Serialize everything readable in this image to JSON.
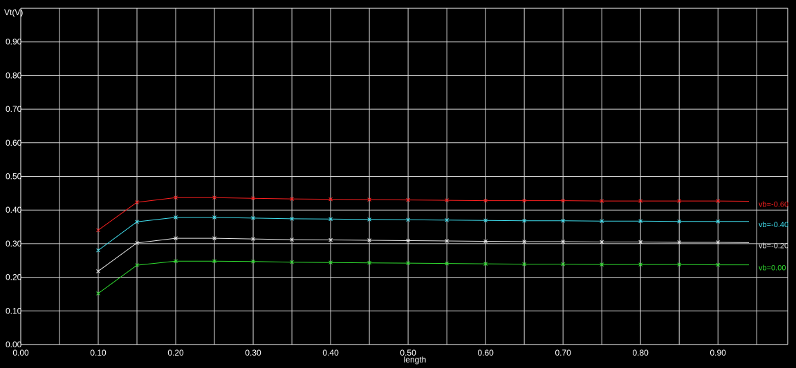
{
  "chart_data": {
    "type": "line",
    "title": "",
    "xlabel": "length",
    "ylabel": "Vt(V)",
    "xlim": [
      0.0,
      0.99
    ],
    "ylim": [
      0.0,
      1.0
    ],
    "x_ticks": [
      "0.00",
      "0.10",
      "0.20",
      "0.30",
      "0.40",
      "0.50",
      "0.60",
      "0.70",
      "0.80",
      "0.90"
    ],
    "y_ticks": [
      "0.00",
      "0.10",
      "0.20",
      "0.30",
      "0.40",
      "0.50",
      "0.60",
      "0.70",
      "0.80",
      "0.90"
    ],
    "grid": true,
    "legend_placement": "right",
    "x": [
      0.1,
      0.15,
      0.2,
      0.25,
      0.3,
      0.35,
      0.4,
      0.45,
      0.5,
      0.55,
      0.6,
      0.65,
      0.7,
      0.75,
      0.8,
      0.85,
      0.9
    ],
    "x_end": 0.94,
    "series": [
      {
        "name": "vb=-0.60",
        "color": "#ff2020",
        "values": [
          0.34,
          0.423,
          0.437,
          0.437,
          0.435,
          0.433,
          0.432,
          0.431,
          0.43,
          0.429,
          0.428,
          0.428,
          0.428,
          0.427,
          0.427,
          0.427,
          0.427
        ],
        "end_value": 0.426
      },
      {
        "name": "vb=-0.40",
        "color": "#40e0f0",
        "values": [
          0.28,
          0.365,
          0.378,
          0.378,
          0.376,
          0.374,
          0.373,
          0.372,
          0.371,
          0.37,
          0.369,
          0.368,
          0.368,
          0.367,
          0.367,
          0.366,
          0.366
        ],
        "end_value": 0.366
      },
      {
        "name": "vb=-0.20",
        "color": "#e8e8e8",
        "values": [
          0.218,
          0.302,
          0.316,
          0.316,
          0.314,
          0.312,
          0.311,
          0.31,
          0.309,
          0.308,
          0.307,
          0.306,
          0.306,
          0.305,
          0.305,
          0.304,
          0.304
        ],
        "end_value": 0.303
      },
      {
        "name": "vb=0.00",
        "color": "#30e030",
        "values": [
          0.152,
          0.236,
          0.248,
          0.248,
          0.247,
          0.245,
          0.244,
          0.243,
          0.242,
          0.241,
          0.24,
          0.239,
          0.239,
          0.238,
          0.238,
          0.238,
          0.237
        ],
        "end_value": 0.237
      }
    ]
  }
}
